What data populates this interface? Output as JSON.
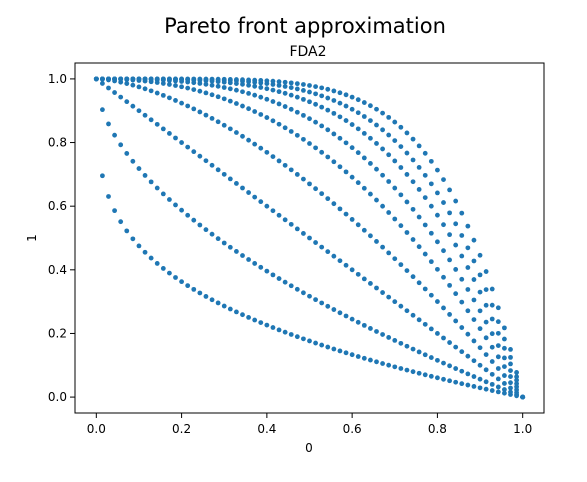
{
  "chart_data": {
    "type": "scatter",
    "title": "Pareto front approximation",
    "subtitle": "FDA2",
    "xlabel": "0",
    "ylabel": "1",
    "xlim": [
      -0.05,
      1.05
    ],
    "ylim": [
      -0.05,
      1.05
    ],
    "xticks": [
      "0.0",
      "0.2",
      "0.4",
      "0.6",
      "0.8",
      "1.0"
    ],
    "yticks": [
      "0.0",
      "0.2",
      "0.4",
      "0.6",
      "0.8",
      "1.0"
    ],
    "grid": false,
    "marker_color": "#1f77b4",
    "front_exponents": [
      0.28,
      0.55,
      1.0,
      1.6,
      2.3,
      3.0,
      3.8,
      4.6,
      5.6
    ],
    "points_per_front": 70,
    "front_equation": "y = 1 - x^k"
  }
}
